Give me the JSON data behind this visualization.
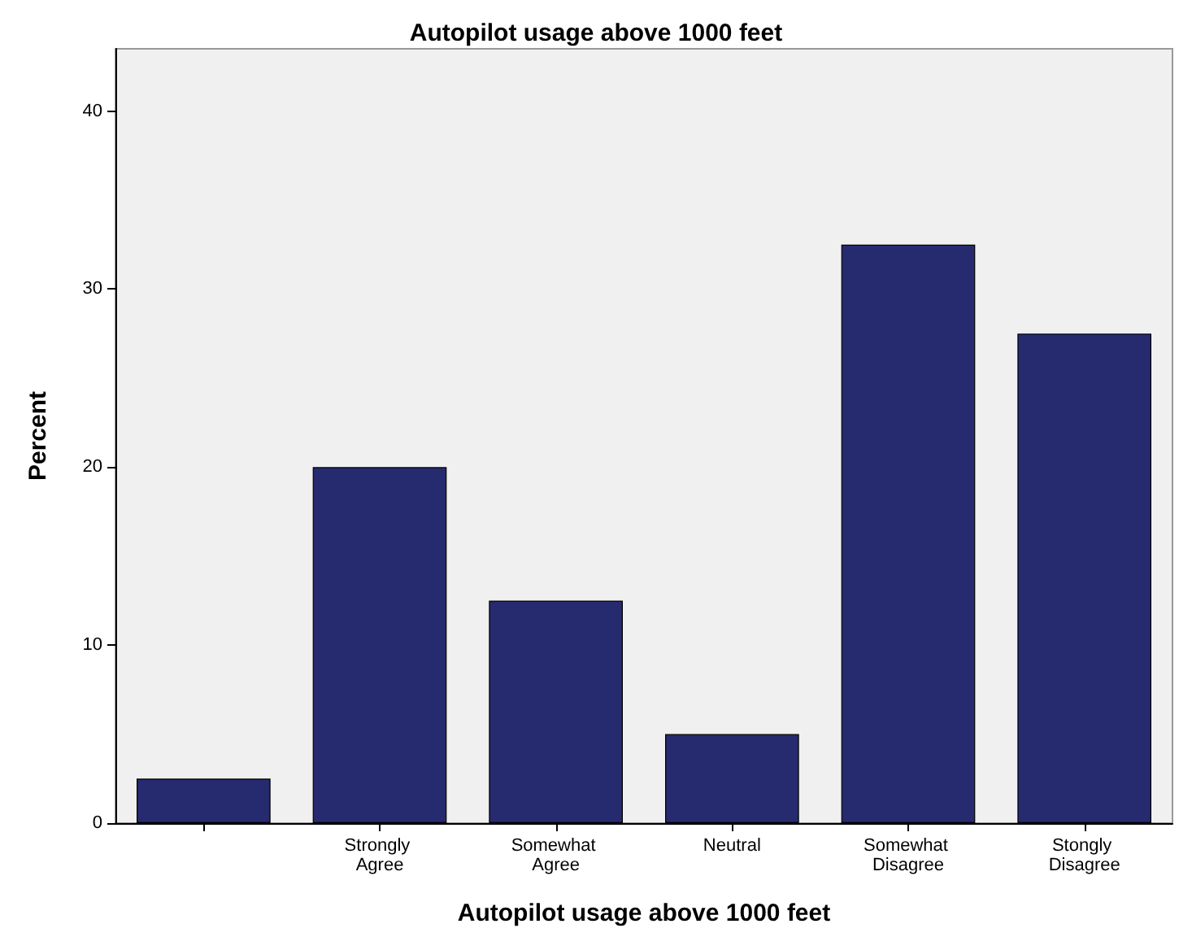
{
  "chart_data": {
    "type": "bar",
    "title": "Autopilot usage above 1000 feet",
    "xlabel": "Autopilot usage above 1000 feet",
    "ylabel": "Percent",
    "categories": [
      null,
      "Strongly Agree",
      "Somewhat Agree",
      "Neutral",
      "Somewhat Disagree",
      "Stongly Disagree"
    ],
    "values": [
      2.5,
      20,
      12.5,
      5,
      32.5,
      27.5
    ],
    "color": "#262a6e",
    "ylim": [
      0,
      43.5
    ],
    "yticks": [
      0,
      10,
      20,
      30,
      40
    ],
    "grid": false
  }
}
